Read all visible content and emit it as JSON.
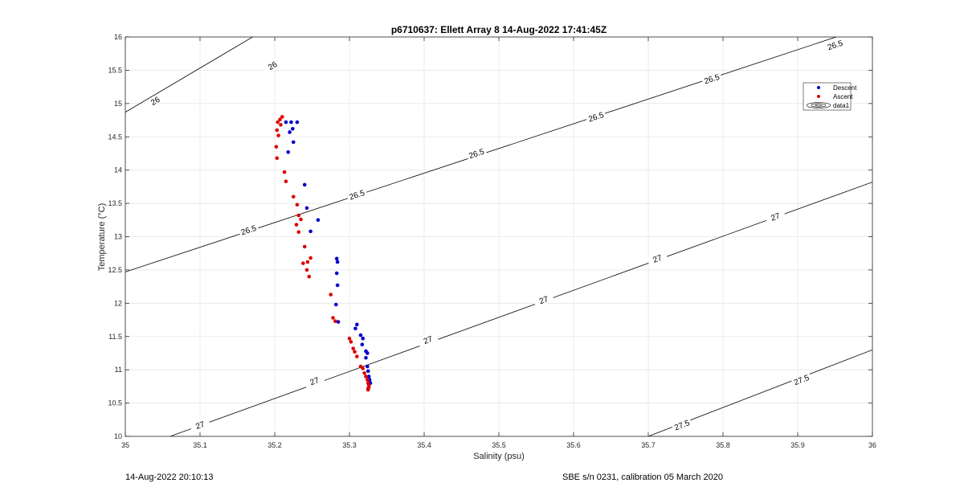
{
  "footer": {
    "timestamp": "14-Aug-2022 20:10:13",
    "calibration": "SBE s/n 0231, calibration 05 March 2020"
  },
  "chart_data": {
    "type": "scatter",
    "title": "p6710637: Ellett Array 8 14-Aug-2022 17:41:45Z",
    "xlabel": "Salinity (psu)",
    "ylabel": "Temperature (°C)",
    "xlim": [
      35,
      36
    ],
    "ylim": [
      10,
      16
    ],
    "xticks": [
      "35",
      "35.1",
      "35.2",
      "35.3",
      "35.4",
      "35.5",
      "35.6",
      "35.7",
      "35.8",
      "35.9",
      "36"
    ],
    "yticks": [
      "10",
      "10.5",
      "11",
      "11.5",
      "12",
      "12.5",
      "13",
      "13.5",
      "14",
      "14.5",
      "15",
      "15.5",
      "16"
    ],
    "grid": true,
    "legend_position": "top-right",
    "colors": {
      "descent": "#0000cc",
      "ascent": "#dd0000",
      "contour": "#000000",
      "grid": "#e6e6e6"
    },
    "series": [
      {
        "name": "Descent",
        "x": [
          35.215,
          35.222,
          35.224,
          35.22,
          35.23,
          35.225,
          35.218,
          35.24,
          35.243,
          35.258,
          35.248,
          35.283,
          35.284,
          35.283,
          35.284,
          35.282,
          35.285,
          35.31,
          35.308,
          35.315,
          35.318,
          35.317,
          35.322,
          35.324,
          35.322,
          35.324,
          35.325,
          35.326,
          35.327,
          35.328
        ],
        "y": [
          14.72,
          14.72,
          14.62,
          14.57,
          14.72,
          14.42,
          14.27,
          13.78,
          13.43,
          13.25,
          13.08,
          12.67,
          12.62,
          12.45,
          12.27,
          11.98,
          11.72,
          11.68,
          11.62,
          11.52,
          11.47,
          11.38,
          11.28,
          11.25,
          11.18,
          11.05,
          10.98,
          10.9,
          10.85,
          10.8
        ]
      },
      {
        "name": "Ascent",
        "x": [
          35.21,
          35.207,
          35.204,
          35.208,
          35.203,
          35.205,
          35.202,
          35.203,
          35.213,
          35.215,
          35.225,
          35.23,
          35.232,
          35.235,
          35.229,
          35.232,
          35.24,
          35.248,
          35.244,
          35.238,
          35.243,
          35.246,
          35.275,
          35.278,
          35.281,
          35.3,
          35.302,
          35.305,
          35.307,
          35.31,
          35.315,
          35.318,
          35.32,
          35.322,
          35.324,
          35.325,
          35.326,
          35.326,
          35.325,
          35.325
        ],
        "y": [
          14.8,
          14.76,
          14.72,
          14.68,
          14.6,
          14.52,
          14.35,
          14.18,
          13.97,
          13.83,
          13.6,
          13.48,
          13.32,
          13.26,
          13.18,
          13.07,
          12.85,
          12.68,
          12.62,
          12.6,
          12.5,
          12.4,
          12.13,
          11.78,
          11.73,
          11.47,
          11.42,
          11.32,
          11.27,
          11.2,
          11.05,
          11.02,
          10.95,
          10.9,
          10.85,
          10.8,
          10.77,
          10.74,
          10.72,
          10.7
        ]
      }
    ],
    "contours": [
      {
        "label": "26",
        "points": [
          [
            35.0,
            14.87
          ],
          [
            36.0,
            21.5
          ]
        ],
        "labels": [
          {
            "x": 35.04,
            "y": 15.04
          },
          {
            "x": 35.197,
            "y": 15.57
          }
        ]
      },
      {
        "label": "26.5",
        "points": [
          [
            35.0,
            12.47
          ],
          [
            36.0,
            16.18
          ]
        ],
        "labels": [
          {
            "x": 35.165,
            "y": 13.1
          },
          {
            "x": 35.31,
            "y": 13.63
          },
          {
            "x": 35.47,
            "y": 14.25
          },
          {
            "x": 35.63,
            "y": 14.8
          },
          {
            "x": 35.785,
            "y": 15.37
          },
          {
            "x": 35.95,
            "y": 15.88
          }
        ]
      },
      {
        "label": "27",
        "points": [
          [
            35.06,
            10.0
          ],
          [
            36.0,
            13.82
          ]
        ],
        "labels": [
          {
            "x": 35.1,
            "y": 10.17
          },
          {
            "x": 35.253,
            "y": 10.83
          },
          {
            "x": 35.405,
            "y": 11.45
          },
          {
            "x": 35.56,
            "y": 12.05
          },
          {
            "x": 35.712,
            "y": 12.67
          },
          {
            "x": 35.87,
            "y": 13.3
          }
        ]
      },
      {
        "label": "27.5",
        "points": [
          [
            35.7,
            10.0
          ],
          [
            36.0,
            11.3
          ]
        ],
        "labels": [
          {
            "x": 35.745,
            "y": 10.17
          },
          {
            "x": 35.905,
            "y": 10.85
          }
        ]
      }
    ],
    "legend": [
      "Descent",
      "Ascent",
      "data1"
    ]
  }
}
